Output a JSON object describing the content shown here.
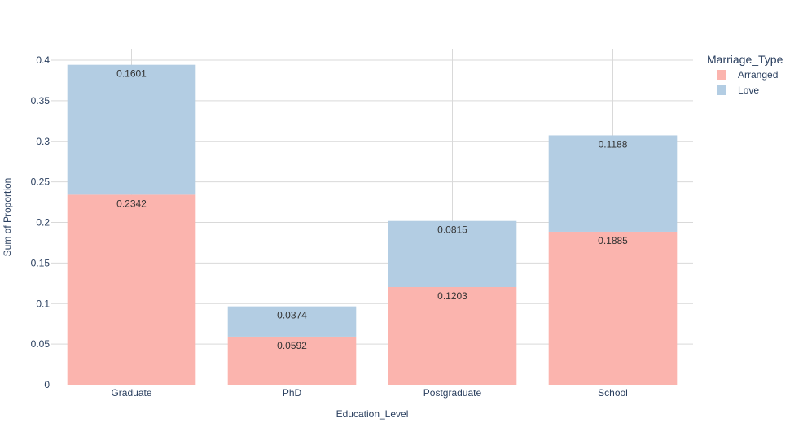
{
  "chart_data": {
    "type": "bar",
    "barmode": "stack",
    "categories": [
      "Graduate",
      "PhD",
      "Postgraduate",
      "School"
    ],
    "series": [
      {
        "name": "Arranged",
        "values": [
          0.2342,
          0.0592,
          0.1203,
          0.1885
        ],
        "color": "#fbb4ae"
      },
      {
        "name": "Love",
        "values": [
          0.1601,
          0.0374,
          0.0815,
          0.1188
        ],
        "color": "#b3cde3"
      }
    ],
    "data_labels": [
      [
        "0.2342",
        "0.0592",
        "0.1203",
        "0.1885"
      ],
      [
        "0.1601",
        "0.0374",
        "0.0815",
        "0.1188"
      ]
    ],
    "xlabel": "Education_Level",
    "ylabel": "Sum of Proportion",
    "ylim": [
      0,
      0.4
    ],
    "yticks": [
      0,
      0.05,
      0.1,
      0.15,
      0.2,
      0.25,
      0.3,
      0.35,
      0.4
    ],
    "ytick_labels": [
      "0",
      "0.05",
      "0.1",
      "0.15",
      "0.2",
      "0.25",
      "0.3",
      "0.35",
      "0.4"
    ],
    "grid": true,
    "legend": {
      "title": "Marriage_Type",
      "position": "top-right"
    }
  }
}
